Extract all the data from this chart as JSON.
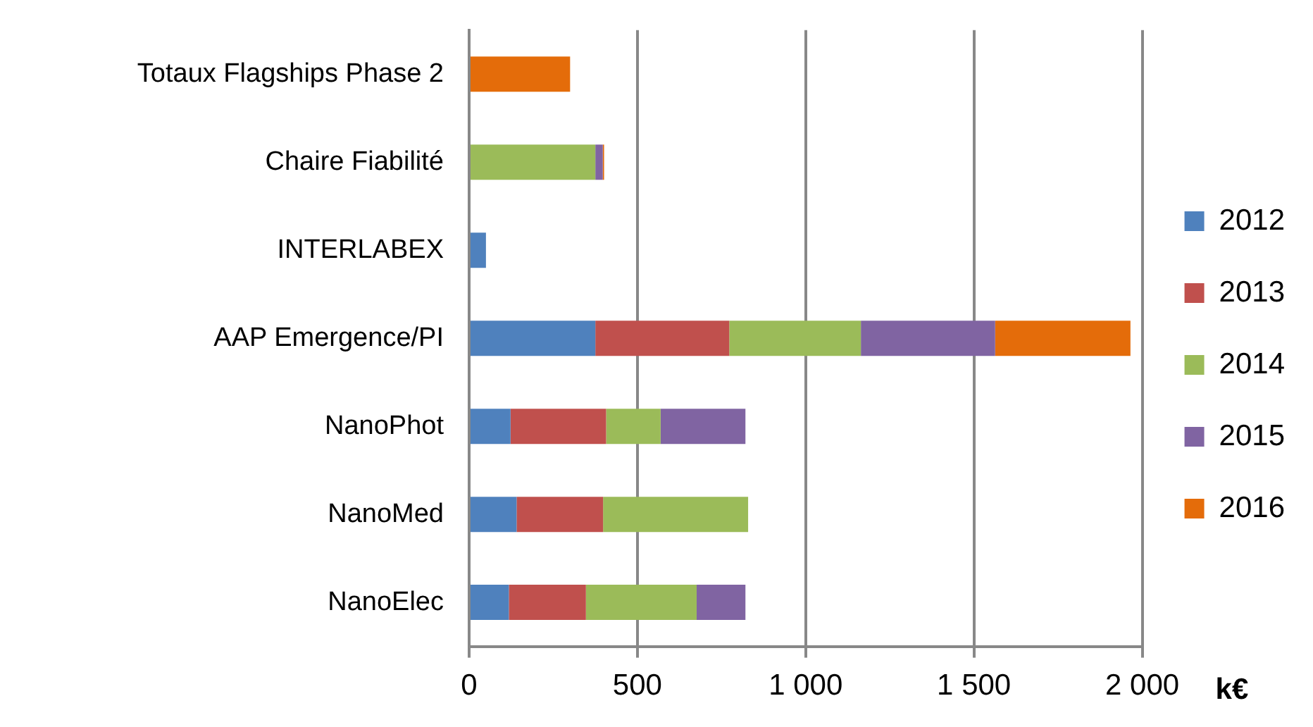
{
  "chart_data": {
    "type": "bar",
    "orientation": "horizontal",
    "stacked": true,
    "xlabel": "k€",
    "categories": [
      "Totaux Flagships Phase 2",
      "Chaire Fiabilité",
      "INTERLABEX",
      "AAP Emergence/PI",
      "NanoPhot",
      "NanoMed",
      "NanoElec"
    ],
    "series": [
      {
        "name": "2012",
        "color": "#4f81bd",
        "values": [
          null,
          null,
          50,
          375,
          123,
          141,
          118
        ]
      },
      {
        "name": "2013",
        "color": "#c0504d",
        "values": [
          null,
          null,
          null,
          398,
          284,
          257,
          229
        ]
      },
      {
        "name": "2014",
        "color": "#9bbb59",
        "values": [
          null,
          375,
          null,
          391,
          162,
          431,
          329
        ]
      },
      {
        "name": "2015",
        "color": "#8064a2",
        "values": [
          null,
          22,
          null,
          399,
          252,
          null,
          145
        ]
      },
      {
        "name": "2016",
        "color": "#e46c0a",
        "values": [
          300,
          4,
          null,
          402,
          null,
          null,
          null
        ]
      }
    ],
    "xlim": [
      0,
      2000
    ],
    "xticks": [
      0,
      {
        "value": 500,
        "label": "500"
      },
      {
        "value": 1000,
        "label": "1 000"
      },
      {
        "value": 1500,
        "label": "1 500"
      },
      {
        "value": 2000,
        "label": "2 000"
      }
    ],
    "grid": "x",
    "legend": "right"
  }
}
